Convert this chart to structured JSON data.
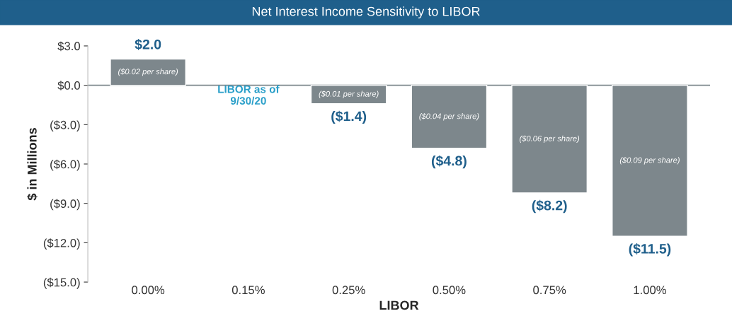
{
  "chart_data": {
    "type": "bar",
    "title": "Net Interest Income Sensitivity to LIBOR",
    "xlabel": "LIBOR",
    "ylabel": "$ in Millions",
    "categories": [
      "0.00%",
      "0.15%",
      "0.25%",
      "0.50%",
      "0.75%",
      "1.00%"
    ],
    "values": [
      2.0,
      null,
      -1.4,
      -4.8,
      -8.2,
      -11.5
    ],
    "value_labels": [
      "$2.0",
      null,
      "($1.4)",
      "($4.8)",
      "($8.2)",
      "($11.5)"
    ],
    "color": "#7d878c",
    "ylim": [
      -15,
      3
    ],
    "yticks": [
      {
        "value": 3,
        "label": "$3.0"
      },
      {
        "value": 0,
        "label": "$0.0"
      },
      {
        "value": -3,
        "label": "($3.0)"
      },
      {
        "value": -6,
        "label": "($6.0)"
      },
      {
        "value": -9,
        "label": "($9.0)"
      },
      {
        "value": -12,
        "label": "($12.0)"
      },
      {
        "value": -15,
        "label": "($15.0)"
      }
    ],
    "ref_lines": [
      {
        "axis": "y",
        "value": 0,
        "color": "#7d878c"
      }
    ],
    "annotations": [
      "($0.02 per share)",
      "LIBOR as of\n9/30/20",
      "($0.01 per share)",
      "($0.04 per share)",
      "($0.06 per share)",
      "($0.09 per share)"
    ],
    "grid": false,
    "legend": false
  }
}
